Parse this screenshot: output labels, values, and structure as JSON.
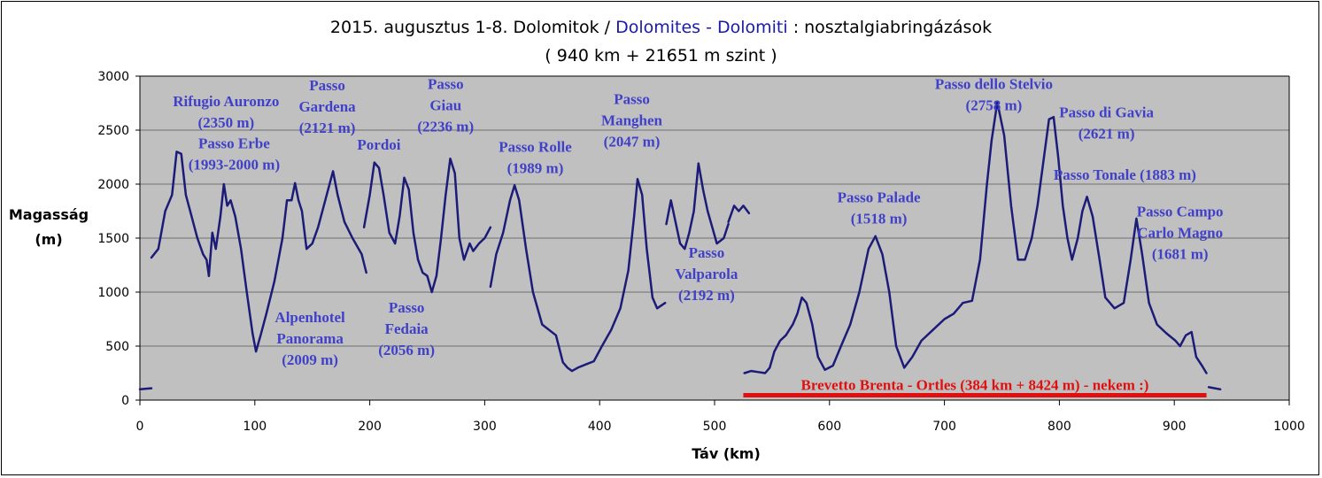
{
  "title": {
    "part1": "2015. augusztus 1-8. Dolomitok / ",
    "part2": "Dolomites - Dolomiti",
    "part3": " : nosztalgiabringázások",
    "line2": "( 940 km + 21651 m szint )"
  },
  "colors": {
    "plot_bg": "#c0c0c0",
    "line": "#1c1c78",
    "annotation": "#4040c8",
    "highlight": "#e01010",
    "title_accent": "#1a1aa8"
  },
  "chart_data": {
    "type": "line",
    "xlabel": "Táv (km)",
    "ylabel_lines": [
      "Magasság",
      "(m)"
    ],
    "xlim": [
      0,
      1000
    ],
    "ylim": [
      0,
      3000
    ],
    "xticks": [
      0,
      100,
      200,
      300,
      400,
      500,
      600,
      700,
      800,
      900,
      1000
    ],
    "yticks": [
      0,
      500,
      1000,
      1500,
      2000,
      2500,
      3000
    ],
    "grid": true,
    "segments": [
      [
        [
          0,
          100
        ],
        [
          10,
          110
        ]
      ],
      [
        [
          10,
          1320
        ],
        [
          16,
          1400
        ],
        [
          22,
          1750
        ],
        [
          28,
          1900
        ],
        [
          32,
          2300
        ],
        [
          36,
          2280
        ],
        [
          40,
          1900
        ],
        [
          45,
          1700
        ],
        [
          50,
          1500
        ],
        [
          55,
          1350
        ],
        [
          58,
          1300
        ],
        [
          60,
          1150
        ]
      ],
      [
        [
          60,
          1150
        ],
        [
          63,
          1550
        ],
        [
          66,
          1400
        ],
        [
          70,
          1700
        ],
        [
          73,
          2000
        ],
        [
          76,
          1800
        ],
        [
          79,
          1850
        ],
        [
          83,
          1700
        ],
        [
          88,
          1400
        ],
        [
          93,
          1000
        ],
        [
          98,
          620
        ],
        [
          101,
          450
        ],
        [
          105,
          600
        ],
        [
          110,
          800
        ],
        [
          117,
          1100
        ],
        [
          124,
          1500
        ],
        [
          128,
          1850
        ],
        [
          132,
          1850
        ],
        [
          135,
          2010
        ],
        [
          138,
          1850
        ],
        [
          141,
          1750
        ],
        [
          145,
          1400
        ],
        [
          150,
          1450
        ],
        [
          155,
          1600
        ],
        [
          160,
          1800
        ],
        [
          165,
          2000
        ],
        [
          168,
          2120
        ],
        [
          172,
          1900
        ],
        [
          178,
          1650
        ],
        [
          185,
          1500
        ],
        [
          193,
          1350
        ],
        [
          197,
          1180
        ]
      ],
      [
        [
          195,
          1600
        ],
        [
          200,
          1900
        ],
        [
          204,
          2200
        ],
        [
          208,
          2150
        ],
        [
          212,
          1900
        ],
        [
          217,
          1550
        ],
        [
          222,
          1450
        ],
        [
          226,
          1700
        ],
        [
          230,
          2060
        ],
        [
          234,
          1950
        ],
        [
          238,
          1550
        ],
        [
          242,
          1300
        ],
        [
          246,
          1180
        ],
        [
          250,
          1150
        ],
        [
          254,
          1000
        ],
        [
          258,
          1150
        ],
        [
          262,
          1500
        ],
        [
          266,
          1900
        ],
        [
          270,
          2236
        ],
        [
          274,
          2100
        ],
        [
          278,
          1500
        ],
        [
          282,
          1300
        ],
        [
          287,
          1450
        ],
        [
          290,
          1380
        ],
        [
          295,
          1450
        ],
        [
          300,
          1500
        ],
        [
          305,
          1600
        ]
      ],
      [
        [
          305,
          1050
        ],
        [
          310,
          1350
        ],
        [
          316,
          1550
        ],
        [
          322,
          1850
        ],
        [
          326,
          1989
        ],
        [
          330,
          1850
        ],
        [
          336,
          1400
        ],
        [
          342,
          1000
        ],
        [
          350,
          700
        ],
        [
          356,
          650
        ],
        [
          362,
          600
        ],
        [
          368,
          350
        ],
        [
          372,
          300
        ],
        [
          376,
          270
        ],
        [
          381,
          300
        ],
        [
          388,
          330
        ],
        [
          395,
          360
        ],
        [
          402,
          500
        ],
        [
          410,
          650
        ],
        [
          418,
          850
        ],
        [
          425,
          1200
        ],
        [
          430,
          1700
        ],
        [
          433,
          2047
        ],
        [
          437,
          1900
        ],
        [
          441,
          1400
        ],
        [
          446,
          950
        ],
        [
          450,
          850
        ],
        [
          457,
          900
        ]
      ],
      [
        [
          458,
          1630
        ],
        [
          462,
          1850
        ],
        [
          466,
          1650
        ],
        [
          470,
          1450
        ],
        [
          474,
          1400
        ],
        [
          478,
          1550
        ],
        [
          482,
          1750
        ],
        [
          486,
          2192
        ],
        [
          490,
          1950
        ],
        [
          494,
          1750
        ],
        [
          498,
          1600
        ],
        [
          502,
          1450
        ],
        [
          508,
          1500
        ],
        [
          512,
          1630
        ]
      ],
      [
        [
          512,
          1650
        ],
        [
          517,
          1800
        ],
        [
          521,
          1750
        ],
        [
          525,
          1800
        ],
        [
          530,
          1730
        ]
      ],
      [
        [
          526,
          250
        ],
        [
          532,
          270
        ],
        [
          538,
          260
        ],
        [
          544,
          250
        ],
        [
          548,
          300
        ],
        [
          552,
          450
        ],
        [
          557,
          550
        ],
        [
          562,
          600
        ],
        [
          568,
          700
        ],
        [
          572,
          800
        ],
        [
          576,
          950
        ],
        [
          580,
          900
        ],
        [
          585,
          700
        ],
        [
          590,
          400
        ],
        [
          596,
          280
        ],
        [
          603,
          320
        ],
        [
          610,
          500
        ],
        [
          618,
          700
        ],
        [
          626,
          1000
        ],
        [
          634,
          1400
        ],
        [
          640,
          1518
        ],
        [
          646,
          1350
        ],
        [
          652,
          1000
        ],
        [
          658,
          500
        ],
        [
          665,
          300
        ],
        [
          672,
          400
        ],
        [
          680,
          550
        ],
        [
          690,
          650
        ],
        [
          700,
          750
        ],
        [
          708,
          800
        ],
        [
          716,
          900
        ],
        [
          724,
          920
        ],
        [
          731,
          1300
        ],
        [
          737,
          2000
        ],
        [
          741,
          2400
        ],
        [
          746,
          2758
        ],
        [
          752,
          2450
        ],
        [
          758,
          1800
        ],
        [
          764,
          1300
        ],
        [
          770,
          1300
        ],
        [
          776,
          1500
        ],
        [
          781,
          1800
        ],
        [
          786,
          2200
        ],
        [
          791,
          2600
        ],
        [
          795,
          2621
        ],
        [
          799,
          2250
        ],
        [
          803,
          1800
        ],
        [
          807,
          1500
        ],
        [
          811,
          1300
        ],
        [
          816,
          1500
        ],
        [
          820,
          1750
        ],
        [
          824,
          1883
        ],
        [
          829,
          1700
        ],
        [
          835,
          1300
        ],
        [
          840,
          950
        ],
        [
          848,
          850
        ],
        [
          856,
          900
        ],
        [
          862,
          1300
        ],
        [
          867,
          1681
        ],
        [
          872,
          1350
        ],
        [
          878,
          900
        ],
        [
          885,
          700
        ],
        [
          893,
          620
        ],
        [
          901,
          550
        ],
        [
          905,
          500
        ],
        [
          910,
          600
        ],
        [
          915,
          630
        ],
        [
          919,
          400
        ],
        [
          924,
          320
        ],
        [
          928,
          250
        ]
      ],
      [
        [
          930,
          120
        ],
        [
          940,
          100
        ]
      ]
    ],
    "highlight": {
      "x": [
        525,
        928
      ],
      "y": 45,
      "label": "Brevetto Brenta - Ortles (384 km + 8424 m) - nekem :)"
    },
    "annotations": [
      {
        "lines": [
          "Rifugio Auronzo",
          "(2350 m)"
        ],
        "x": 75,
        "y": 2720
      },
      {
        "lines": [
          "Passo Erbe",
          "(1993-2000 m)"
        ],
        "x": 82,
        "y": 2330
      },
      {
        "lines": [
          "Alpenhotel",
          "Panorama",
          "(2009 m)"
        ],
        "x": 148,
        "y": 720
      },
      {
        "lines": [
          "Passo",
          "Gardena",
          "(2121 m)"
        ],
        "x": 163,
        "y": 2870
      },
      {
        "lines": [
          "Pordoi"
        ],
        "x": 208,
        "y": 2320
      },
      {
        "lines": [
          "Passo",
          "Giau",
          "(2236 m)"
        ],
        "x": 266,
        "y": 2880
      },
      {
        "lines": [
          "Passo",
          "Fedaia",
          "(2056 m)"
        ],
        "x": 232,
        "y": 810
      },
      {
        "lines": [
          "Passo Rolle",
          "(1989 m)"
        ],
        "x": 344,
        "y": 2300
      },
      {
        "lines": [
          "Passo",
          "Manghen",
          "(2047 m)"
        ],
        "x": 428,
        "y": 2740
      },
      {
        "lines": [
          "Passo",
          "Valparola",
          "(2192 m)"
        ],
        "x": 493,
        "y": 1320
      },
      {
        "lines": [
          "Passo Palade",
          "(1518 m)"
        ],
        "x": 643,
        "y": 1830
      },
      {
        "lines": [
          "Passo dello Stelvio",
          "(2758 m)"
        ],
        "x": 743,
        "y": 2880
      },
      {
        "lines": [
          "Passo di Gavia",
          "(2621 m)"
        ],
        "x": 841,
        "y": 2620
      },
      {
        "lines": [
          "Passo Tonale (1883 m)"
        ],
        "x": 857,
        "y": 2040
      },
      {
        "lines": [
          "Passo Campo",
          "Carlo Magno",
          "(1681 m)"
        ],
        "x": 905,
        "y": 1700
      }
    ]
  }
}
